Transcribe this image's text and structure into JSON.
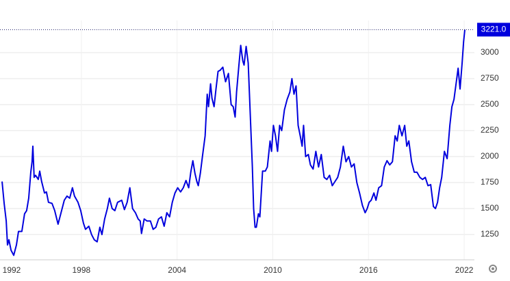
{
  "chart_data": {
    "type": "line",
    "x": [
      1993.03,
      1993.16,
      1993.29,
      1993.37,
      1993.46,
      1993.59,
      1993.76,
      1993.93,
      1994.06,
      1994.27,
      1994.44,
      1994.57,
      1994.7,
      1994.83,
      1994.91,
      1994.96,
      1995.04,
      1995.13,
      1995.3,
      1995.39,
      1995.51,
      1995.69,
      1995.81,
      1995.94,
      1996.16,
      1996.33,
      1996.54,
      1996.71,
      1996.93,
      1997.1,
      1997.27,
      1997.44,
      1997.57,
      1997.79,
      1997.96,
      1998.13,
      1998.26,
      1998.47,
      1998.64,
      1998.81,
      1998.99,
      1999.16,
      1999.29,
      1999.46,
      1999.63,
      1999.76,
      1999.93,
      2000.1,
      2000.27,
      2000.53,
      2000.7,
      2000.87,
      2001.04,
      2001.21,
      2001.39,
      2001.56,
      2001.69,
      2001.77,
      2001.94,
      2002.12,
      2002.33,
      2002.5,
      2002.67,
      2002.84,
      2003.02,
      2003.19,
      2003.36,
      2003.53,
      2003.7,
      2003.87,
      2004.04,
      2004.22,
      2004.39,
      2004.56,
      2004.73,
      2004.86,
      2004.99,
      2005.12,
      2005.24,
      2005.33,
      2005.46,
      2005.59,
      2005.76,
      2005.89,
      2005.97,
      2006.1,
      2006.19,
      2006.32,
      2006.44,
      2006.57,
      2006.7,
      2006.87,
      2007.04,
      2007.22,
      2007.39,
      2007.52,
      2007.64,
      2007.73,
      2007.86,
      2007.99,
      2008.12,
      2008.2,
      2008.33,
      2008.46,
      2008.59,
      2008.72,
      2008.8,
      2008.89,
      2008.97,
      2009.1,
      2009.19,
      2009.36,
      2009.53,
      2009.66,
      2009.83,
      2009.92,
      2010.04,
      2010.17,
      2010.3,
      2010.43,
      2010.56,
      2010.73,
      2010.9,
      2011.07,
      2011.2,
      2011.33,
      2011.46,
      2011.59,
      2011.72,
      2011.84,
      2011.93,
      2012.06,
      2012.23,
      2012.36,
      2012.53,
      2012.7,
      2012.87,
      2013.04,
      2013.22,
      2013.39,
      2013.56,
      2013.73,
      2013.9,
      2014.07,
      2014.24,
      2014.42,
      2014.59,
      2014.76,
      2014.93,
      2015.1,
      2015.27,
      2015.44,
      2015.62,
      2015.79,
      2015.92,
      2016.04,
      2016.17,
      2016.34,
      2016.47,
      2016.64,
      2016.82,
      2016.99,
      2017.16,
      2017.33,
      2017.5,
      2017.67,
      2017.8,
      2017.93,
      2018.1,
      2018.27,
      2018.4,
      2018.53,
      2018.7,
      2018.87,
      2019.04,
      2019.22,
      2019.39,
      2019.56,
      2019.73,
      2019.9,
      2020.07,
      2020.2,
      2020.33,
      2020.46,
      2020.59,
      2020.76,
      2020.93,
      2021.1,
      2021.23,
      2021.36,
      2021.49,
      2021.62,
      2021.74,
      2021.87,
      2021.96,
      2022.04
    ],
    "series": [
      {
        "color": "#0000dd",
        "values": [
          1760,
          1550,
          1380,
          1150,
          1200,
          1100,
          1050,
          1150,
          1280,
          1280,
          1450,
          1480,
          1600,
          1850,
          1950,
          2100,
          1800,
          1820,
          1780,
          1860,
          1760,
          1650,
          1660,
          1560,
          1550,
          1480,
          1350,
          1450,
          1580,
          1620,
          1600,
          1700,
          1620,
          1560,
          1480,
          1360,
          1300,
          1330,
          1250,
          1200,
          1180,
          1320,
          1250,
          1400,
          1500,
          1600,
          1500,
          1480,
          1560,
          1580,
          1490,
          1560,
          1700,
          1500,
          1460,
          1400,
          1380,
          1260,
          1400,
          1380,
          1380,
          1300,
          1320,
          1400,
          1420,
          1330,
          1460,
          1420,
          1560,
          1650,
          1700,
          1660,
          1700,
          1770,
          1700,
          1850,
          1960,
          1840,
          1760,
          1720,
          1840,
          2000,
          2200,
          2600,
          2480,
          2700,
          2560,
          2480,
          2650,
          2820,
          2830,
          2860,
          2720,
          2800,
          2500,
          2480,
          2380,
          2620,
          2850,
          3070,
          2920,
          2880,
          3060,
          2900,
          2400,
          1900,
          1500,
          1320,
          1320,
          1450,
          1420,
          1860,
          1860,
          1900,
          2150,
          2050,
          2300,
          2200,
          2050,
          2300,
          2250,
          2450,
          2550,
          2620,
          2750,
          2600,
          2680,
          2300,
          2200,
          2100,
          2300,
          2000,
          2020,
          1920,
          1880,
          2050,
          1900,
          2020,
          1800,
          1780,
          1820,
          1720,
          1760,
          1800,
          1900,
          2100,
          1950,
          2000,
          1900,
          1930,
          1750,
          1650,
          1530,
          1460,
          1500,
          1560,
          1580,
          1650,
          1580,
          1700,
          1720,
          1900,
          1960,
          1920,
          1950,
          2200,
          2150,
          2300,
          2200,
          2300,
          2100,
          2150,
          1950,
          1850,
          1850,
          1800,
          1780,
          1800,
          1720,
          1730,
          1520,
          1500,
          1560,
          1700,
          1800,
          2050,
          1980,
          2300,
          2480,
          2550,
          2700,
          2850,
          2650,
          2900,
          3100,
          3221
        ]
      }
    ],
    "last_value": {
      "value": 3221,
      "label": "3221.0"
    },
    "xlim": [
      1992.9,
      2022.64
    ],
    "xticks": [
      1992,
      1998,
      2004,
      2010,
      2016,
      2022
    ],
    "ylim": [
      1007,
      3309
    ],
    "yticks": [
      1250,
      1500,
      1750,
      2000,
      2250,
      2500,
      2750,
      3000
    ],
    "grid": true
  }
}
